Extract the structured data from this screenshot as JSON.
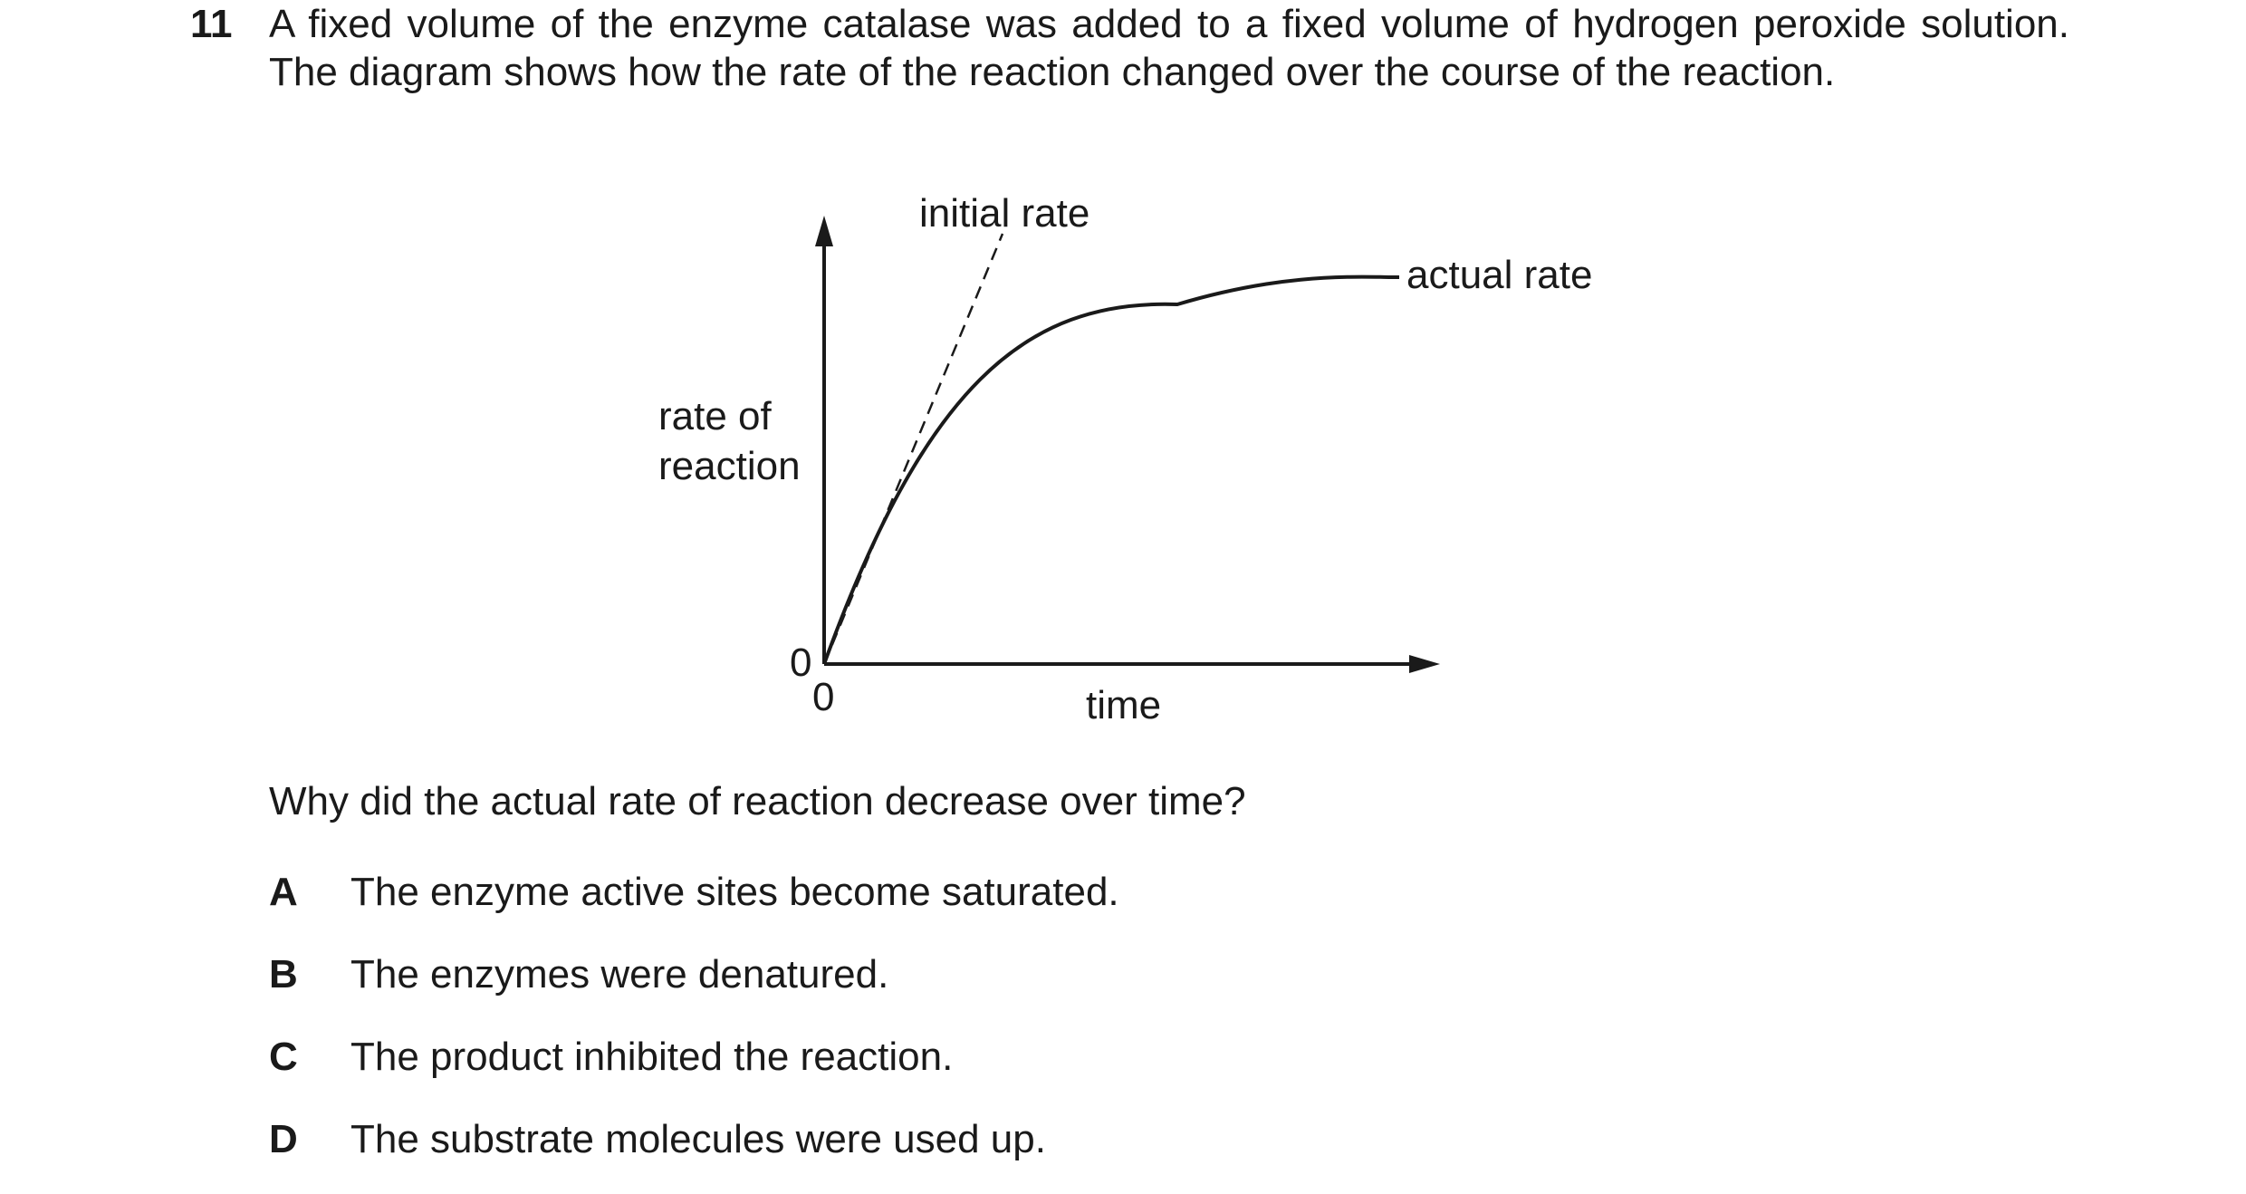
{
  "question": {
    "number": "11",
    "stem": "A fixed volume of the enzyme catalase was added to a fixed volume of hydrogen peroxide solution. The diagram shows how the rate of the reaction changed over the course of the reaction.",
    "prompt": "Why did the actual rate of reaction decrease over time?",
    "options": [
      {
        "letter": "A",
        "text": "The enzyme active sites become saturated."
      },
      {
        "letter": "B",
        "text": "The enzymes were denatured."
      },
      {
        "letter": "C",
        "text": "The product inhibited the reaction."
      },
      {
        "letter": "D",
        "text": "The substrate molecules were used up."
      }
    ]
  },
  "diagram": {
    "y_axis_label_line1": "rate of",
    "y_axis_label_line2": "reaction",
    "x_axis_label": "time",
    "y_origin_label": "0",
    "x_origin_label": "0",
    "initial_rate_label": "initial rate",
    "actual_rate_label": "actual rate",
    "line_color": "#1a1a1a"
  }
}
